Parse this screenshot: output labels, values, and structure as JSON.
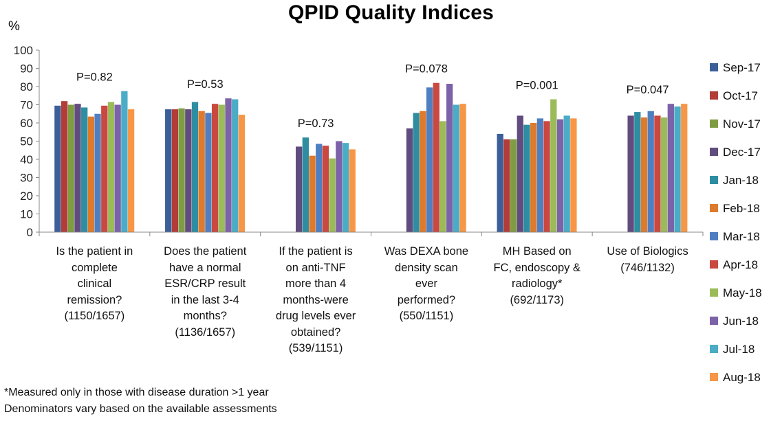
{
  "chart_data": {
    "type": "bar",
    "title": "QPID Quality Indices",
    "ylabel": "%",
    "ylim": [
      0,
      100
    ],
    "yticks": [
      0,
      10,
      20,
      30,
      40,
      50,
      60,
      70,
      80,
      90,
      100
    ],
    "grid": false,
    "legend_position": "right",
    "categories": [
      [
        "Is the patient in",
        "complete",
        "clinical",
        "remission?",
        "(1150/1657)"
      ],
      [
        "Does the patient",
        "have a normal",
        "ESR/CRP result",
        "in the last 3-4",
        "months?",
        "(1136/1657)"
      ],
      [
        "If the patient is",
        "on anti-TNF",
        "more than 4",
        "months-were",
        "drug levels ever",
        "obtained?",
        "(539/1151)"
      ],
      [
        "Was DEXA bone",
        "density scan",
        "ever",
        "performed?",
        "(550/1151)"
      ],
      [
        "MH Based on",
        "FC, endoscopy &",
        "radiology*",
        "(692/1173)"
      ],
      [
        "Use of Biologics",
        "(746/1132)"
      ]
    ],
    "p_values": [
      "P=0.82",
      "P=0.53",
      "P=0.73",
      "P=0.078",
      "P=0.001",
      "P=0.047"
    ],
    "series": [
      {
        "name": "Sep-17",
        "color": "#3b5f99",
        "values": [
          69.5,
          67.5,
          null,
          null,
          54,
          null
        ]
      },
      {
        "name": "Oct-17",
        "color": "#b23c38",
        "values": [
          72,
          67.5,
          null,
          null,
          51,
          null
        ]
      },
      {
        "name": "Nov-17",
        "color": "#7f9c43",
        "values": [
          70,
          68,
          null,
          null,
          51,
          null
        ]
      },
      {
        "name": "Dec-17",
        "color": "#604c7f",
        "values": [
          70.5,
          67.5,
          47,
          57,
          64,
          64
        ]
      },
      {
        "name": "Jan-18",
        "color": "#2f8da2",
        "values": [
          68.5,
          71.5,
          52,
          65.5,
          59,
          66
        ]
      },
      {
        "name": "Feb-18",
        "color": "#de7a2c",
        "values": [
          63.5,
          66.5,
          42,
          66.5,
          60,
          63
        ]
      },
      {
        "name": "Mar-18",
        "color": "#4f7fc1",
        "values": [
          65,
          65.5,
          48.5,
          79.5,
          62.5,
          66.5
        ]
      },
      {
        "name": "Apr-18",
        "color": "#c9483f",
        "values": [
          69.5,
          70.5,
          47.5,
          82,
          61,
          64
        ]
      },
      {
        "name": "May-18",
        "color": "#9bbb59",
        "values": [
          71.5,
          70,
          40.5,
          61,
          73,
          63
        ]
      },
      {
        "name": "Jun-18",
        "color": "#7c62a8",
        "values": [
          70,
          73.5,
          50,
          81.5,
          62,
          70.5
        ]
      },
      {
        "name": "Jul-18",
        "color": "#4bacc6",
        "values": [
          77.5,
          73,
          49,
          70,
          64,
          69
        ]
      },
      {
        "name": "Aug-18",
        "color": "#f79646",
        "values": [
          67.5,
          64.5,
          45.5,
          70.5,
          62.5,
          70.5
        ]
      }
    ]
  },
  "footnotes": [
    "*Measured  only in those with disease duration >1 year",
    "Denominators vary based on the available assessments"
  ]
}
